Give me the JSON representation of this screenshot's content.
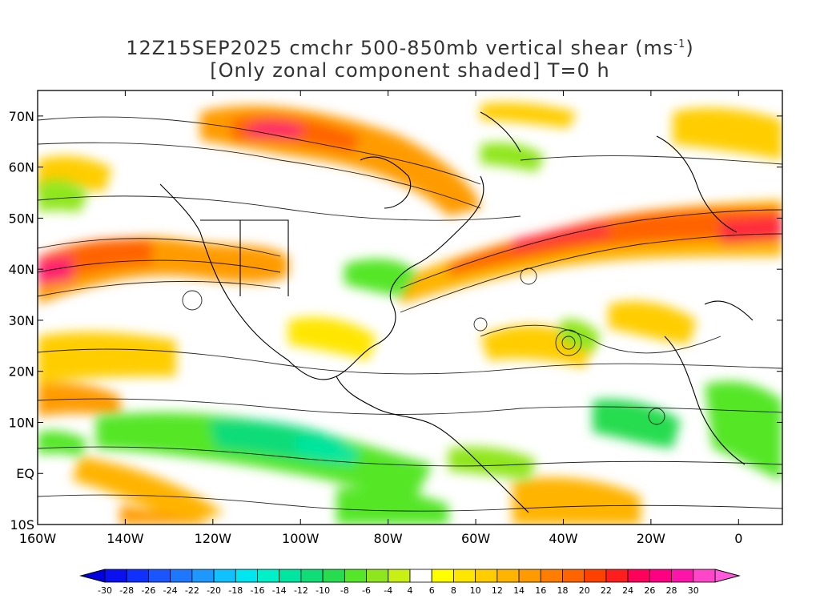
{
  "title": {
    "line1_main": "12Z15SEP2025 cmchr 500-850mb vertical shear (ms",
    "line1_sup": "-1",
    "line1_end": ")",
    "line2": "[Only zonal component shaded] T=0 h"
  },
  "axes": {
    "lat_labels": [
      "70N",
      "60N",
      "50N",
      "40N",
      "30N",
      "20N",
      "10N",
      "EQ",
      "10S"
    ],
    "lon_labels": [
      "160W",
      "140W",
      "120W",
      "100W",
      "80W",
      "60W",
      "40W",
      "20W",
      "0"
    ],
    "lat_range": [
      -10,
      75
    ],
    "lon_range": [
      -160,
      10
    ]
  },
  "colorbar": {
    "labels": [
      "-30",
      "-28",
      "-26",
      "-24",
      "-22",
      "-20",
      "-18",
      "-16",
      "-14",
      "-12",
      "-10",
      "-8",
      "-6",
      "-4",
      "4",
      "6",
      "8",
      "10",
      "12",
      "14",
      "16",
      "18",
      "20",
      "22",
      "24",
      "26",
      "28",
      "30"
    ],
    "colors": [
      "#0a10f0",
      "#1030ff",
      "#1a55ff",
      "#1e78ff",
      "#1e98ff",
      "#10c0ff",
      "#00e6f0",
      "#00f0c8",
      "#00e6a0",
      "#10dc78",
      "#28dc50",
      "#55e628",
      "#90e61e",
      "#c8f014",
      "#ffffff",
      "#ffff00",
      "#ffe600",
      "#ffcd00",
      "#ffb400",
      "#ff9b00",
      "#ff7d00",
      "#ff6400",
      "#ff4100",
      "#ff1e1e",
      "#ff005a",
      "#ff0082",
      "#ff14aa",
      "#ff46c8"
    ],
    "under_color": "#0000e0",
    "over_color": "#ff5adc"
  },
  "map": {
    "jet_core_labels": []
  }
}
